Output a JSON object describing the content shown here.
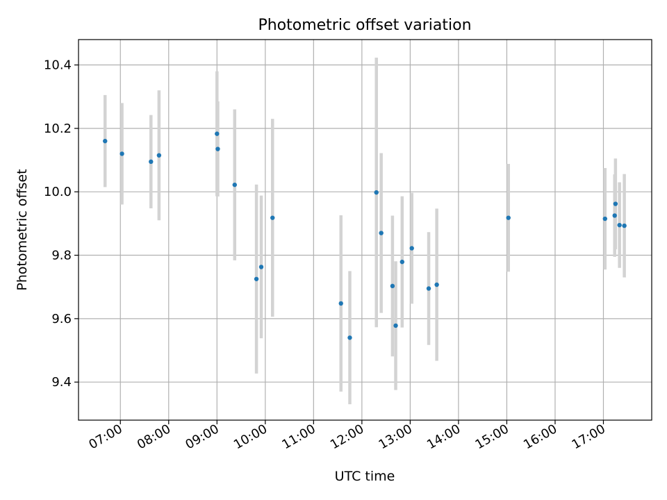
{
  "chart_data": {
    "type": "scatter",
    "title": "Photometric offset variation",
    "xlabel": "UTC time",
    "ylabel": "Photometric offset",
    "x_ticks": [
      "07:00",
      "08:00",
      "09:00",
      "10:00",
      "11:00",
      "12:00",
      "13:00",
      "14:00",
      "15:00",
      "16:00",
      "17:00"
    ],
    "y_ticks": [
      "9.4",
      "9.6",
      "9.8",
      "10.0",
      "10.2",
      "10.4"
    ],
    "xlim": [
      "06:08",
      "18:00"
    ],
    "ylim": [
      9.28,
      10.48
    ],
    "grid": true,
    "point_color": "#1f77b4",
    "errorbar_color": "#d3d3d3",
    "points": [
      {
        "x": "06:41",
        "y": 10.16,
        "err": 0.145
      },
      {
        "x": "07:02",
        "y": 10.12,
        "err": 0.16
      },
      {
        "x": "07:38",
        "y": 10.095,
        "err": 0.147
      },
      {
        "x": "07:48",
        "y": 10.115,
        "err": 0.205
      },
      {
        "x": "09:00",
        "y": 10.183,
        "err": 0.197
      },
      {
        "x": "09:01",
        "y": 10.135,
        "err": 0.15
      },
      {
        "x": "09:22",
        "y": 10.022,
        "err": 0.238
      },
      {
        "x": "09:49",
        "y": 9.725,
        "err": 0.298
      },
      {
        "x": "09:55",
        "y": 9.763,
        "err": 0.225
      },
      {
        "x": "10:09",
        "y": 9.918,
        "err": 0.312
      },
      {
        "x": "11:34",
        "y": 9.648,
        "err": 0.278
      },
      {
        "x": "11:45",
        "y": 9.54,
        "err": 0.21
      },
      {
        "x": "12:18",
        "y": 9.998,
        "err": 0.425
      },
      {
        "x": "12:24",
        "y": 9.87,
        "err": 0.252
      },
      {
        "x": "12:38",
        "y": 9.703,
        "err": 0.222
      },
      {
        "x": "12:42",
        "y": 9.578,
        "err": 0.203
      },
      {
        "x": "12:50",
        "y": 9.779,
        "err": 0.207
      },
      {
        "x": "13:02",
        "y": 9.822,
        "err": 0.175
      },
      {
        "x": "13:23",
        "y": 9.695,
        "err": 0.178
      },
      {
        "x": "13:33",
        "y": 9.707,
        "err": 0.24
      },
      {
        "x": "15:02",
        "y": 9.918,
        "err": 0.17
      },
      {
        "x": "17:02",
        "y": 9.915,
        "err": 0.16
      },
      {
        "x": "17:14",
        "y": 9.925,
        "err": 0.13
      },
      {
        "x": "17:15",
        "y": 9.962,
        "err": 0.143
      },
      {
        "x": "17:20",
        "y": 9.895,
        "err": 0.135
      },
      {
        "x": "17:26",
        "y": 9.893,
        "err": 0.163
      }
    ]
  }
}
